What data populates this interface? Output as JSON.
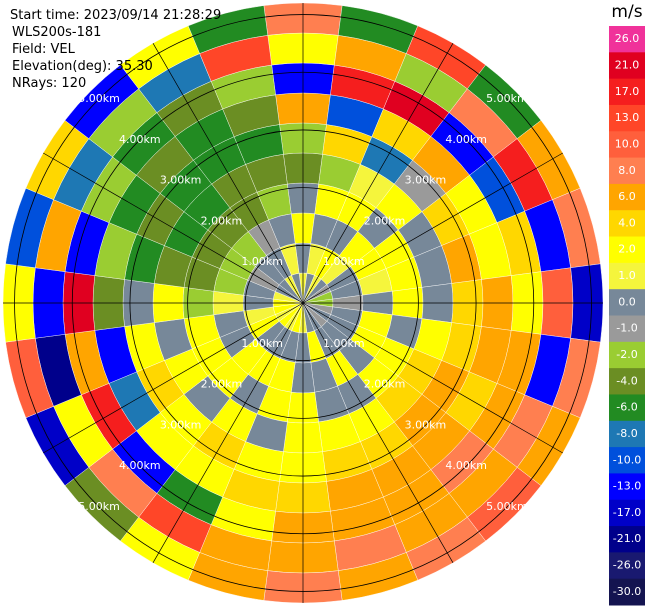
{
  "chart_data": {
    "type": "ppi",
    "header": [
      "Start time: 2023/09/14 21:28:29",
      "WLS200s-181",
      "Field: VEL",
      "Elevation(deg): 35.30",
      "NRays: 120"
    ],
    "azimuths": [
      0,
      15,
      30,
      45,
      60,
      75,
      90,
      105,
      120,
      135,
      150,
      165,
      180,
      195,
      210,
      225,
      240,
      255,
      270,
      285,
      300,
      315,
      330,
      345
    ],
    "gates": [
      0,
      0.52,
      1.04,
      1.56,
      2.08,
      2.6,
      3.12,
      3.64,
      4.16,
      4.68,
      5.2
    ],
    "values": [
      [
        1,
        0,
        2,
        0,
        -4,
        -2,
        6,
        -13,
        2,
        8
      ],
      [
        0,
        1,
        0,
        2,
        -2,
        4,
        -10,
        17,
        6,
        -6
      ],
      [
        1,
        2,
        0,
        2,
        1,
        -8,
        4,
        21,
        -2,
        13
      ],
      [
        0,
        1,
        2,
        0,
        2,
        -1,
        6,
        -13,
        8,
        -6
      ],
      [
        -1,
        0,
        2,
        2,
        0,
        4,
        2,
        -10,
        17,
        6
      ],
      [
        -2,
        0,
        1,
        2,
        0,
        6,
        2,
        4,
        -13,
        8
      ],
      [
        -2,
        -1,
        0,
        2,
        0,
        4,
        6,
        2,
        10,
        -17
      ],
      [
        -1,
        0,
        2,
        0,
        2,
        4,
        6,
        6,
        -13,
        8
      ],
      [
        0,
        0,
        2,
        2,
        4,
        6,
        4,
        6,
        8,
        6
      ],
      [
        -1,
        0,
        0,
        2,
        4,
        6,
        6,
        8,
        6,
        10
      ],
      [
        0,
        0,
        2,
        0,
        2,
        4,
        6,
        6,
        6,
        8
      ],
      [
        0,
        2,
        0,
        0,
        2,
        4,
        6,
        6,
        8,
        6
      ],
      [
        1,
        0,
        0,
        2,
        2,
        2,
        4,
        6,
        6,
        8
      ],
      [
        2,
        0,
        2,
        2,
        0,
        2,
        4,
        2,
        6,
        6
      ],
      [
        1,
        0,
        2,
        0,
        2,
        4,
        2,
        -6,
        13,
        2
      ],
      [
        2,
        0,
        2,
        2,
        0,
        2,
        2,
        -13,
        8,
        -4
      ],
      [
        1,
        2,
        0,
        2,
        2,
        4,
        -8,
        17,
        2,
        -17
      ],
      [
        2,
        1,
        0,
        2,
        0,
        2,
        -13,
        6,
        -21,
        10
      ],
      [
        2,
        0,
        1,
        -2,
        2,
        0,
        -4,
        21,
        -13,
        2
      ],
      [
        1,
        0,
        -2,
        -4,
        -4,
        -6,
        -2,
        -13,
        6,
        -10
      ],
      [
        0,
        -1,
        -2,
        -4,
        -6,
        -4,
        -6,
        -2,
        -8,
        4
      ],
      [
        0,
        0,
        -2,
        -4,
        -6,
        -6,
        -4,
        -6,
        -2,
        -13
      ],
      [
        1,
        0,
        -1,
        -4,
        -4,
        -6,
        -6,
        -4,
        -8,
        2
      ],
      [
        0,
        1,
        0,
        -2,
        -4,
        -6,
        -4,
        -2,
        13,
        -6
      ]
    ],
    "rlim": [
      0,
      5.2
    ],
    "rticks": [
      {
        "value": 1,
        "label": "1.00km"
      },
      {
        "value": 2,
        "label": "2.00km"
      },
      {
        "value": 3,
        "label": "3.00km"
      },
      {
        "value": 4,
        "label": "4.00km"
      },
      {
        "value": 5,
        "label": "5.00km"
      }
    ],
    "colorbar": {
      "title": "m/s",
      "ticks": [
        {
          "value": 26,
          "label": "26.0"
        },
        {
          "value": 21,
          "label": "21.0"
        },
        {
          "value": 17,
          "label": "17.0"
        },
        {
          "value": 13,
          "label": "13.0"
        },
        {
          "value": 10,
          "label": "10.0"
        },
        {
          "value": 8,
          "label": "8.0"
        },
        {
          "value": 6,
          "label": "6.0"
        },
        {
          "value": 4,
          "label": "4.0"
        },
        {
          "value": 2,
          "label": "2.0"
        },
        {
          "value": 1,
          "label": "1.0"
        },
        {
          "value": 0,
          "label": "0.0"
        },
        {
          "value": -1,
          "label": "-1.0"
        },
        {
          "value": -2,
          "label": "-2.0"
        },
        {
          "value": -4,
          "label": "-4.0"
        },
        {
          "value": -6,
          "label": "-6.0"
        },
        {
          "value": -8,
          "label": "-8.0"
        },
        {
          "value": -10,
          "label": "-10.0"
        },
        {
          "value": -13,
          "label": "-13.0"
        },
        {
          "value": -17,
          "label": "-17.0"
        },
        {
          "value": -21,
          "label": "-21.0"
        },
        {
          "value": -26,
          "label": "-26.0"
        },
        {
          "value": -30,
          "label": "-30.0"
        }
      ],
      "colors": [
        "#f0329a",
        "#e00020",
        "#f51e1e",
        "#ff4628",
        "#ff5f3c",
        "#ff7f50",
        "#ffa500",
        "#ffd700",
        "#ffff00",
        "#f5f53c",
        "#778899",
        "#9a9a9a",
        "#9acd32",
        "#6b8e23",
        "#228b22",
        "#1e78b4",
        "#0050dc",
        "#0000ff",
        "#0000c8",
        "#00008b",
        "#191970",
        "#141450"
      ]
    }
  }
}
